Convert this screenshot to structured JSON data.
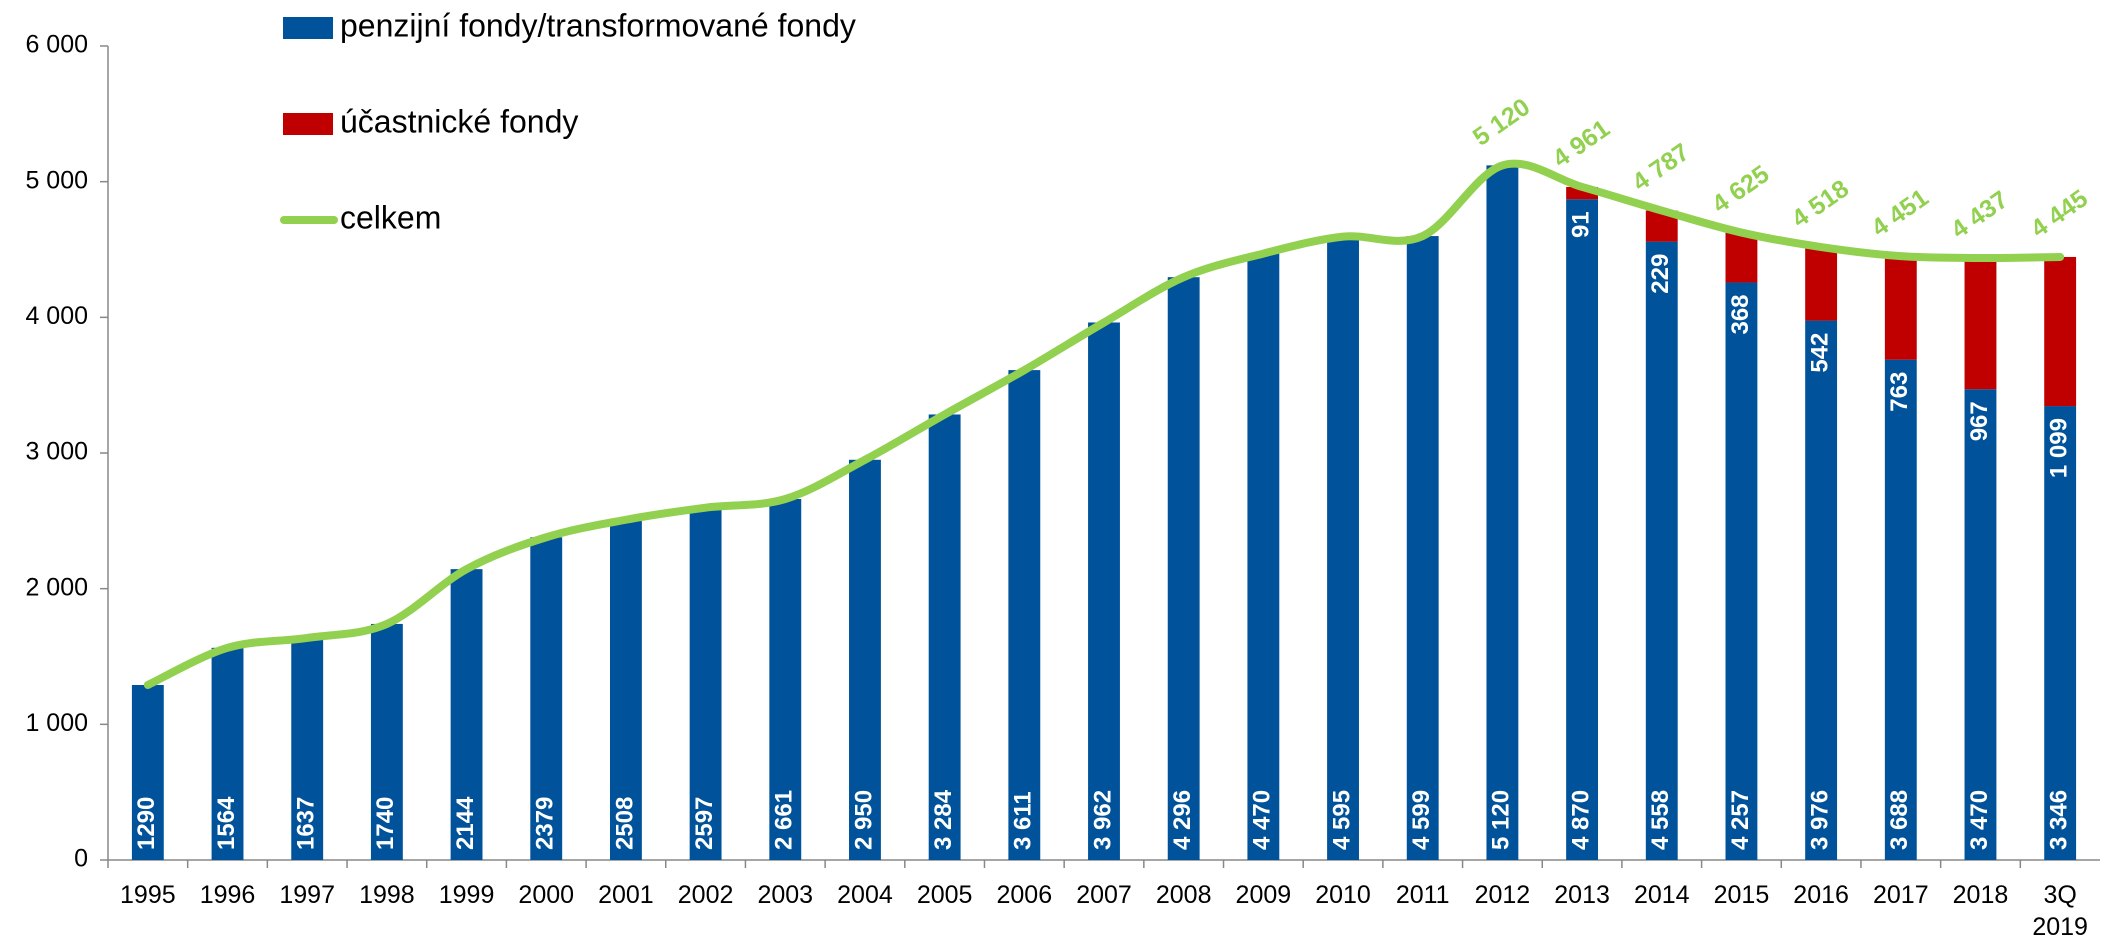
{
  "chart_data": {
    "type": "bar",
    "categories": [
      "1995",
      "1996",
      "1997",
      "1998",
      "1999",
      "2000",
      "2001",
      "2002",
      "2003",
      "2004",
      "2005",
      "2006",
      "2007",
      "2008",
      "2009",
      "2010",
      "2011",
      "2012",
      "2013",
      "2014",
      "2015",
      "2016",
      "2017",
      "2018",
      "3Q\n2019"
    ],
    "series": [
      {
        "name": "penzijní fondy/transformované fondy",
        "color": "#00539b",
        "values": [
          1290,
          1564,
          1637,
          1740,
          2144,
          2379,
          2508,
          2597,
          2661,
          2950,
          3284,
          3611,
          3962,
          4296,
          4470,
          4595,
          4599,
          5120,
          4870,
          4558,
          4257,
          3976,
          3688,
          3470,
          3346
        ],
        "value_labels": [
          "1290",
          "1564",
          "1637",
          "1740",
          "2144",
          "2379",
          "2508",
          "2597",
          "2 661",
          "2 950",
          "3 284",
          "3 611",
          "3 962",
          "4 296",
          "4 470",
          "4 595",
          "4 599",
          "5 120",
          "4 870",
          "4 558",
          "4 257",
          "3 976",
          "3 688",
          "3 470",
          "3 346"
        ]
      },
      {
        "name": "účastnické fondy",
        "color": "#c00000",
        "values": [
          null,
          null,
          null,
          null,
          null,
          null,
          null,
          null,
          null,
          null,
          null,
          null,
          null,
          null,
          null,
          null,
          null,
          null,
          91,
          229,
          368,
          542,
          763,
          967,
          1099
        ],
        "value_labels": [
          null,
          null,
          null,
          null,
          null,
          null,
          null,
          null,
          null,
          null,
          null,
          null,
          null,
          null,
          null,
          null,
          null,
          null,
          "91",
          "229",
          "368",
          "542",
          "763",
          "967",
          "1 099"
        ]
      },
      {
        "name": "celkem",
        "color": "#92d050",
        "type": "line",
        "values": [
          1290,
          1564,
          1637,
          1740,
          2144,
          2379,
          2508,
          2597,
          2661,
          2950,
          3284,
          3611,
          3962,
          4296,
          4470,
          4595,
          4599,
          5120,
          4961,
          4787,
          4625,
          4518,
          4451,
          4437,
          4445
        ],
        "value_labels": [
          null,
          null,
          null,
          null,
          null,
          null,
          null,
          null,
          null,
          null,
          null,
          null,
          null,
          null,
          null,
          null,
          null,
          "5 120",
          "4 961",
          "4 787",
          "4 625",
          "4 518",
          "4 451",
          "4 437",
          "4 445"
        ]
      }
    ],
    "ylim": [
      0,
      6000
    ],
    "yticks": [
      0,
      {
        "value": 1000,
        "label": "1 000"
      },
      {
        "value": 2000,
        "label": "2 000"
      },
      {
        "value": 3000,
        "label": "3 000"
      },
      {
        "value": 4000,
        "label": "4 000"
      },
      {
        "value": 5000,
        "label": "5 000"
      },
      {
        "value": 6000,
        "label": "6 000"
      }
    ],
    "grid": false,
    "legend": "top-left"
  }
}
